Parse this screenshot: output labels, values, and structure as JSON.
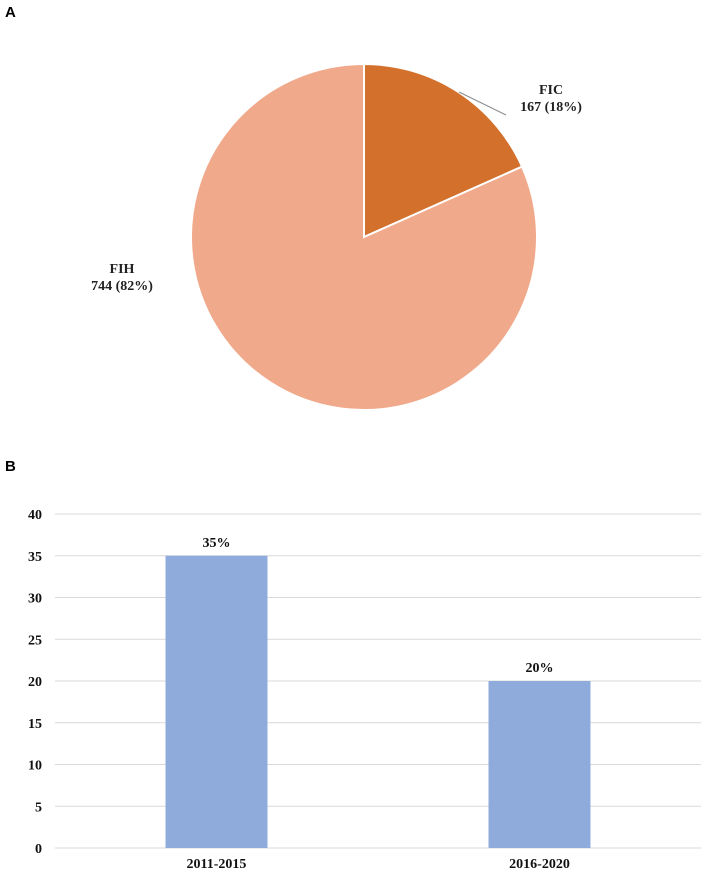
{
  "panels": {
    "a_label": "A",
    "b_label": "B"
  },
  "chart_data": [
    {
      "type": "pie",
      "slices": [
        {
          "label": "FIC",
          "value": 167,
          "value_text": "167 (18%)",
          "percent": 18,
          "color": "#D2702C"
        },
        {
          "label": "FIH",
          "value": 744,
          "value_text": "744 (82%)",
          "percent": 82,
          "color": "#F0A98A"
        }
      ],
      "start_angle_deg": 0,
      "direction": "clockwise",
      "edge_color": "#ffffff"
    },
    {
      "type": "bar",
      "categories": [
        "2011-2015",
        "2016-2020"
      ],
      "values": [
        35,
        20
      ],
      "data_labels": [
        "35%",
        "20%"
      ],
      "bar_color": "#8FABDC",
      "ylim": [
        0,
        40
      ],
      "yticks": [
        0,
        5,
        10,
        15,
        20,
        25,
        30,
        35,
        40
      ],
      "grid": true,
      "gridline_color": "#D9D9D9"
    }
  ]
}
